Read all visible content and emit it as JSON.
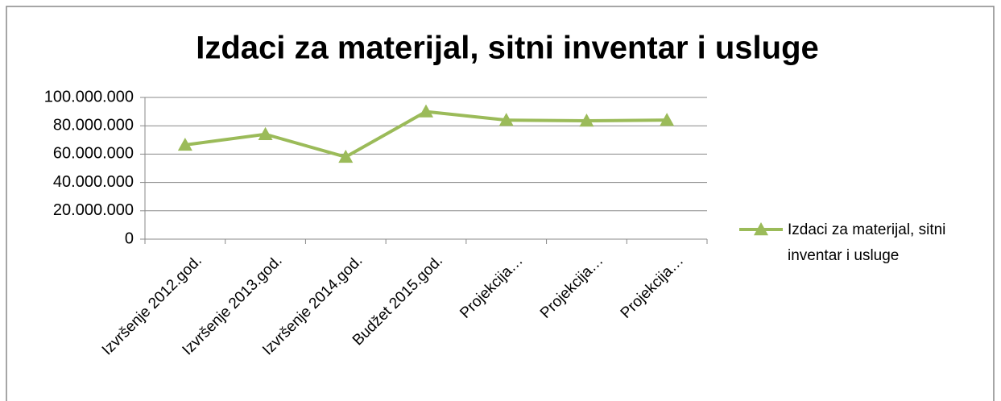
{
  "chart_data": {
    "type": "line",
    "title": "Izdaci za materijal, sitni inventar i usluge",
    "categories": [
      "Izvršenje 2012.god.",
      "Izvršenje 2013.god.",
      "Izvršenje 2014.god.",
      "Budžet 2015.god.",
      "Projekcija…",
      "Projekcija…",
      "Projekcija…"
    ],
    "series": [
      {
        "name": "Izdaci za materijal, sitni inventar i usluge",
        "color": "#9bbb59",
        "values": [
          66500000,
          74000000,
          58000000,
          90000000,
          84000000,
          83500000,
          84000000
        ]
      }
    ],
    "ylim": [
      0,
      100000000
    ],
    "yticks": [
      0,
      {
        "value": 20000000,
        "label": "20.000.000"
      },
      {
        "value": 40000000,
        "label": "40.000.000"
      },
      {
        "value": 60000000,
        "label": "60.000.000"
      },
      {
        "value": 80000000,
        "label": "80.000.000"
      },
      {
        "value": 100000000,
        "label": "100.000.000"
      }
    ],
    "grid": true,
    "legend": "right"
  }
}
